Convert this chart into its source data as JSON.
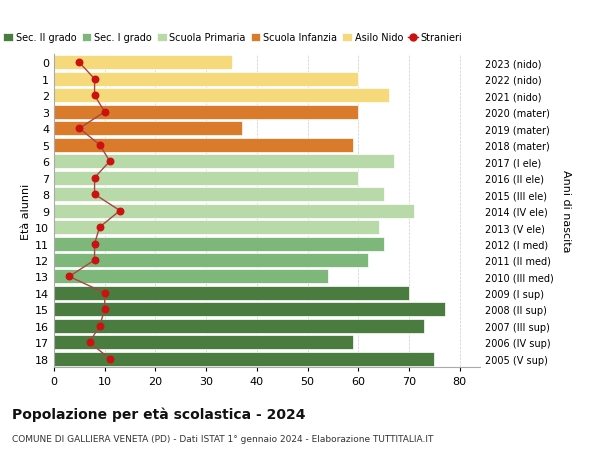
{
  "ages": [
    18,
    17,
    16,
    15,
    14,
    13,
    12,
    11,
    10,
    9,
    8,
    7,
    6,
    5,
    4,
    3,
    2,
    1,
    0
  ],
  "years": [
    "2005 (V sup)",
    "2006 (IV sup)",
    "2007 (III sup)",
    "2008 (II sup)",
    "2009 (I sup)",
    "2010 (III med)",
    "2011 (II med)",
    "2012 (I med)",
    "2013 (V ele)",
    "2014 (IV ele)",
    "2015 (III ele)",
    "2016 (II ele)",
    "2017 (I ele)",
    "2018 (mater)",
    "2019 (mater)",
    "2020 (mater)",
    "2021 (nido)",
    "2022 (nido)",
    "2023 (nido)"
  ],
  "bar_values": [
    75,
    59,
    73,
    77,
    70,
    54,
    62,
    65,
    64,
    71,
    65,
    60,
    67,
    59,
    37,
    60,
    66,
    60,
    35
  ],
  "bar_colors": [
    "#4a7c3f",
    "#4a7c3f",
    "#4a7c3f",
    "#4a7c3f",
    "#4a7c3f",
    "#7db87a",
    "#7db87a",
    "#7db87a",
    "#b8d9a8",
    "#b8d9a8",
    "#b8d9a8",
    "#b8d9a8",
    "#b8d9a8",
    "#d97b2a",
    "#d97b2a",
    "#d97b2a",
    "#f5d97a",
    "#f5d97a",
    "#f5d97a"
  ],
  "stranieri": [
    11,
    7,
    9,
    10,
    10,
    3,
    8,
    8,
    9,
    13,
    8,
    8,
    11,
    9,
    5,
    10,
    8,
    8,
    5
  ],
  "stranieri_color": "#cc1111",
  "stranieri_line_color": "#aa4444",
  "legend_labels": [
    "Sec. II grado",
    "Sec. I grado",
    "Scuola Primaria",
    "Scuola Infanzia",
    "Asilo Nido",
    "Stranieri"
  ],
  "legend_colors": [
    "#4a7c3f",
    "#7db87a",
    "#b8d9a8",
    "#d97b2a",
    "#f5d97a",
    "#cc1111"
  ],
  "ylabel_right": "Anni di nascita",
  "title": "Popolazione per eta scolastica - 2024",
  "title_display": "Popolazione per età scolastica - 2024",
  "subtitle": "COMUNE DI GALLIERA VENETA (PD) - Dati ISTAT 1° gennaio 2024 - Elaborazione TUTTITALIA.IT",
  "xlim": [
    0,
    84
  ],
  "xticks": [
    0,
    10,
    20,
    30,
    40,
    50,
    60,
    70,
    80
  ],
  "background_color": "#ffffff",
  "grid_color": "#cccccc"
}
